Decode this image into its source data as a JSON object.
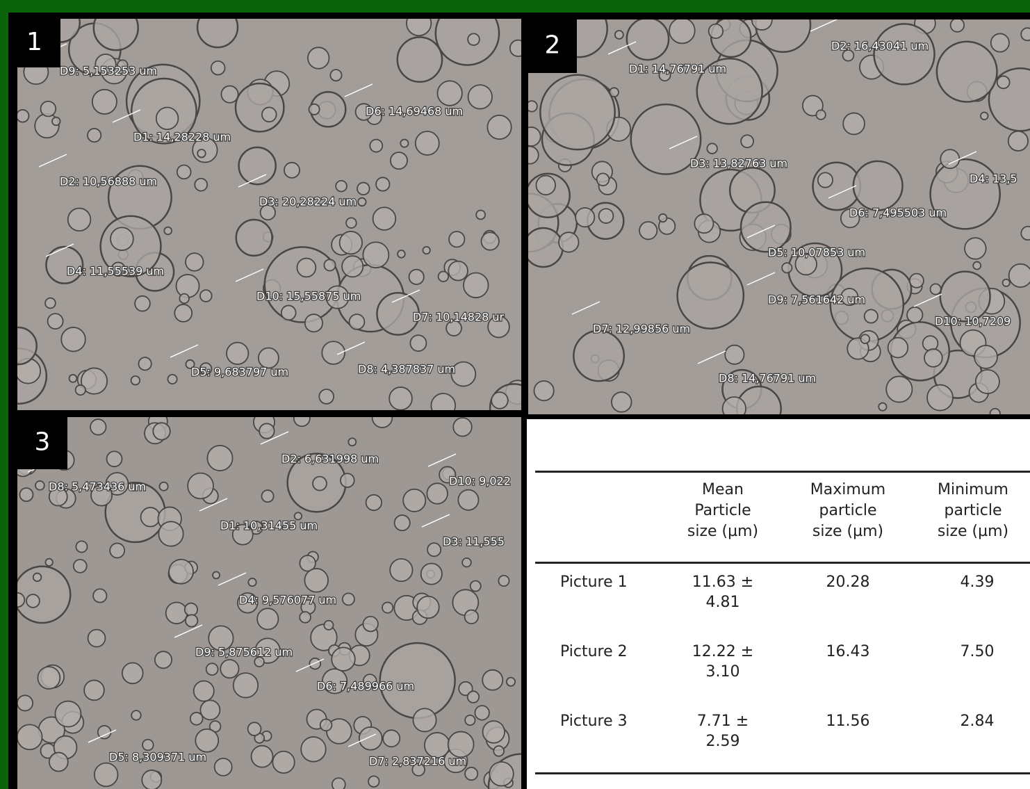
{
  "panels": [
    {
      "number": "1",
      "labels": [
        "D9: 5,153253 um",
        "D6: 14,69468 um",
        "D1: 14,28228 um",
        "D2: 10,56888 um",
        "D3: 20,28224 um",
        "D4: 11,55539 um",
        "D10: 15,55875 um",
        "D7: 10,14828 ur",
        "D5: 9,683797 um",
        "D8: 4,387837 um"
      ]
    },
    {
      "number": "2",
      "labels": [
        "D1: 14,76791 um",
        "D2: 16,43041 um",
        "D3: 13,82763 um",
        "D4: 13,5",
        "D6: 7,495503 um",
        "D5: 10,07853 um",
        "D9: 7,561642 um",
        "D7: 12,99856 um",
        "D10: 10,7209",
        "D8: 14,76791 um"
      ]
    },
    {
      "number": "3",
      "labels": [
        "D2: 6,631998 um",
        "D8: 5,473436 um",
        "D10: 9,022",
        "D1: 10,31455 um",
        "D3: 11,555",
        "D4: 9,576077 um",
        "D9: 5,875612 um",
        "D6: 7,489966 um",
        "D5: 8,309371 um",
        "D7: 2,837216 um"
      ]
    }
  ],
  "table": {
    "header": [
      "Mean Particle size (µm)",
      "Maximum particle size (µm)",
      "Minimum particle size (µm)"
    ],
    "rows": [
      [
        "Picture 1",
        "11.63 ± 4.81",
        "20.28",
        "4.39"
      ],
      [
        "Picture 2",
        "12.22 ± 3.10",
        "16.43",
        "7.50"
      ],
      [
        "Picture 3",
        "7.71 ± 2.59",
        "11.56",
        "2.84"
      ]
    ]
  }
}
